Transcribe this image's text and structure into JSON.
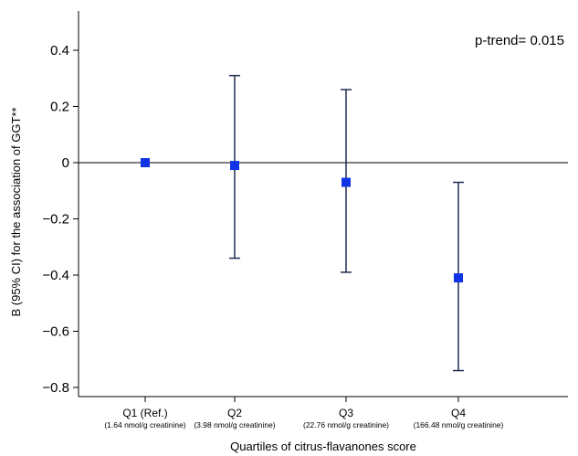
{
  "chart_data": {
    "type": "scatter",
    "subtype": "point-estimate-with-95ci",
    "ylabel": "B (95% CI) for the association of GGT**",
    "xlabel": "Quartiles of citrus-flavanones score",
    "annotation": "p-trend= 0.015",
    "ylim": [
      -0.85,
      0.55
    ],
    "yticks": [
      0.4,
      0.2,
      0,
      -0.2,
      -0.4,
      -0.6,
      -0.8
    ],
    "ytick_labels": [
      "0.4",
      "0.2",
      "0",
      "−0.2",
      "−0.4",
      "−0.6",
      "−0.8"
    ],
    "categories": [
      "Q1 (Ref.)",
      "Q2",
      "Q3",
      "Q4"
    ],
    "category_sublabels": [
      "(1.64 nmol/g creatinine)",
      "(3.98 nmol/g creatinine)",
      "(22.76 nmol/g creatinine)",
      "(166.48 nmol/g creatinine)"
    ],
    "points": [
      {
        "category": "Q1 (Ref.)",
        "estimate": 0.0,
        "ci_low": null,
        "ci_high": null
      },
      {
        "category": "Q2",
        "estimate": -0.01,
        "ci_low": -0.34,
        "ci_high": 0.31
      },
      {
        "category": "Q3",
        "estimate": -0.07,
        "ci_low": -0.39,
        "ci_high": 0.26
      },
      {
        "category": "Q4",
        "estimate": -0.41,
        "ci_low": -0.74,
        "ci_high": -0.07
      }
    ],
    "reference_line": 0,
    "grid": false,
    "marker_color": "#1034e6",
    "errorbar_color": "#1f2d50"
  }
}
